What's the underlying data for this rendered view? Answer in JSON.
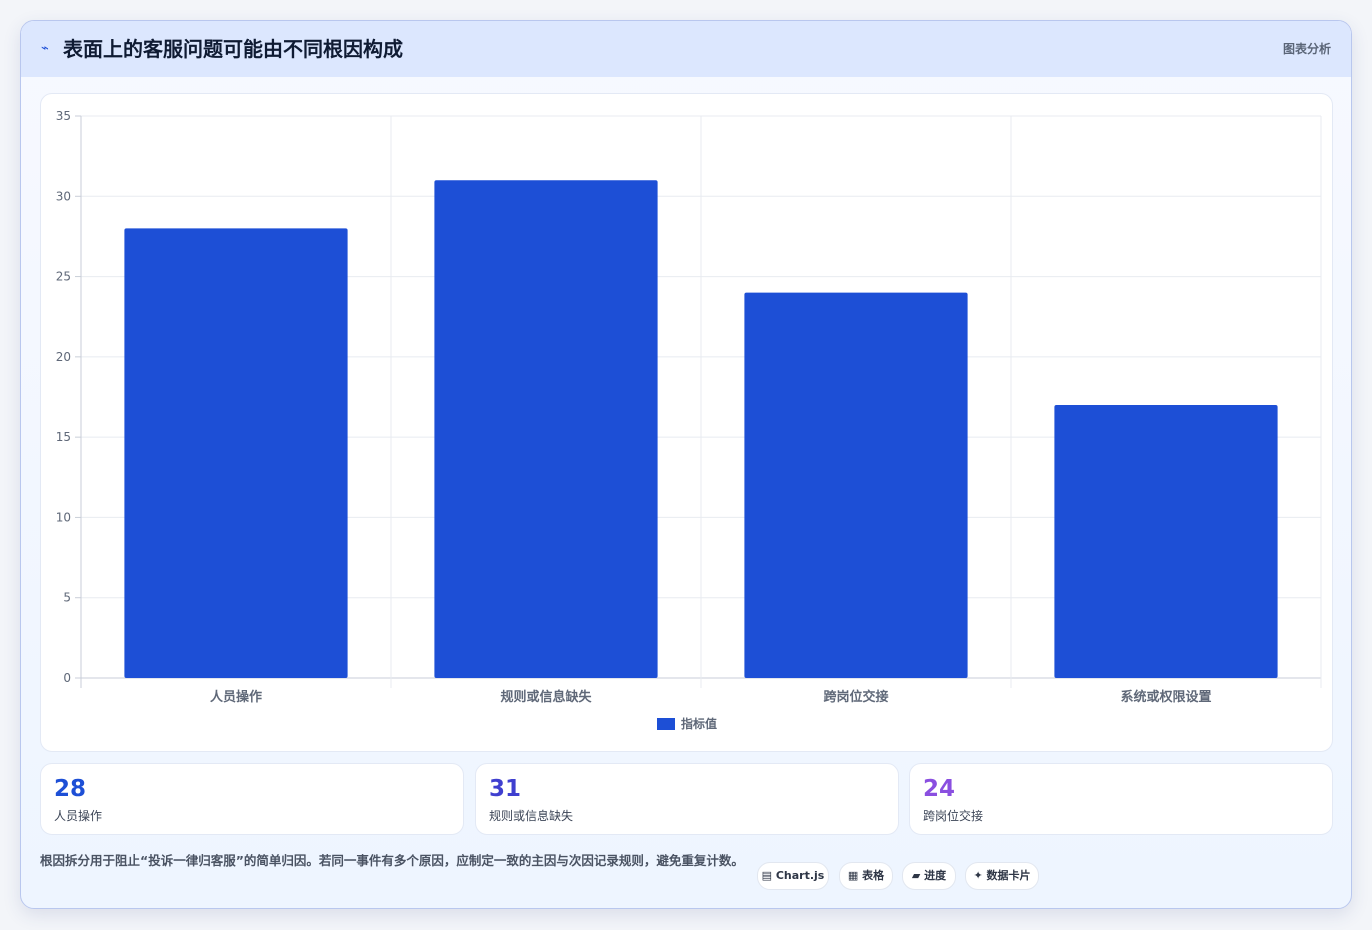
{
  "header": {
    "icon": "trend-line-icon",
    "title": "表面上的客服问题可能由不同根因构成",
    "tag": "图表分析"
  },
  "chart_data": {
    "type": "bar",
    "categories": [
      "人员操作",
      "规则或信息缺失",
      "跨岗位交接",
      "系统或权限设置"
    ],
    "series": [
      {
        "name": "指标值",
        "values": [
          28,
          31,
          24,
          17
        ],
        "color": "#1d4fd6"
      }
    ],
    "ylim": [
      0,
      35
    ],
    "yticks": [
      0,
      5,
      10,
      15,
      20,
      25,
      30,
      35
    ],
    "grid": true,
    "legend": "bottom"
  },
  "stats": [
    {
      "value": "28",
      "label": "人员操作",
      "color": "#1d4fd6"
    },
    {
      "value": "31",
      "label": "规则或信息缺失",
      "color": "#3f3fcf"
    },
    {
      "value": "24",
      "label": "跨岗位交接",
      "color": "#8a4fe0"
    }
  ],
  "note": "根因拆分用于阻止“投诉一律归客服”的简单归因。若同一事件有多个原因，应制定一致的主因与次因记录规则，避免重复计数。",
  "pills": [
    {
      "label": "▤ Chart.js"
    },
    {
      "label": "▦ 表格"
    },
    {
      "label": "▰ 进度"
    },
    {
      "label": "✦ 数据卡片"
    }
  ]
}
